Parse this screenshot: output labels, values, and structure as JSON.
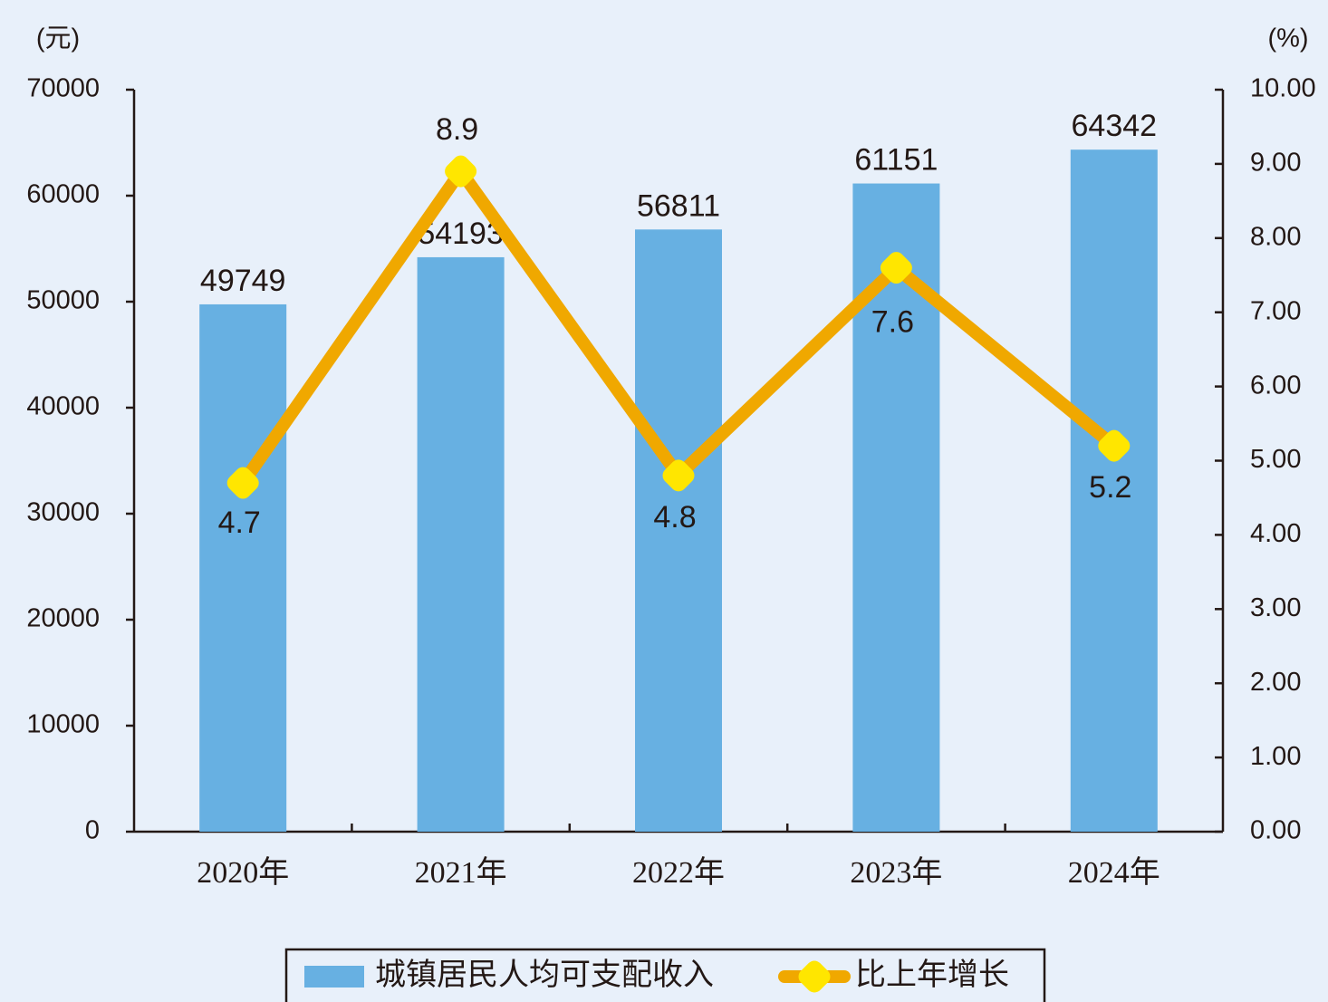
{
  "chart_data": {
    "type": "bar-line",
    "y_unit": "(元)",
    "y2_unit": "(%)",
    "categories": [
      "2020年",
      "2021年",
      "2022年",
      "2023年",
      "2024年"
    ],
    "series": [
      {
        "name": "城镇居民人均可支配收入",
        "type": "bar",
        "color": "#67b0e2",
        "values": [
          49749,
          54193,
          56811,
          61151,
          64342
        ]
      },
      {
        "name": "比上年增长",
        "type": "line",
        "axis": "y2",
        "color": "#f0a800",
        "marker_color": "#ffe600",
        "values": [
          4.7,
          8.9,
          4.8,
          7.6,
          5.2
        ]
      }
    ],
    "ylim": [
      0,
      70000
    ],
    "yticks": [
      0,
      10000,
      20000,
      30000,
      40000,
      50000,
      60000,
      70000
    ],
    "y2lim": [
      0,
      10
    ],
    "y2ticks": [
      {
        "value": 0,
        "label": "0.00"
      },
      {
        "value": 1,
        "label": "1.00"
      },
      {
        "value": 2,
        "label": "2.00"
      },
      {
        "value": 3,
        "label": "3.00"
      },
      {
        "value": 4,
        "label": "4.00"
      },
      {
        "value": 5,
        "label": "5.00"
      },
      {
        "value": 6,
        "label": "6.00"
      },
      {
        "value": 7,
        "label": "7.00"
      },
      {
        "value": 8,
        "label": "8.00"
      },
      {
        "value": 9,
        "label": "9.00"
      },
      {
        "value": 10,
        "label": "10.00"
      }
    ],
    "legend": "bottom"
  }
}
